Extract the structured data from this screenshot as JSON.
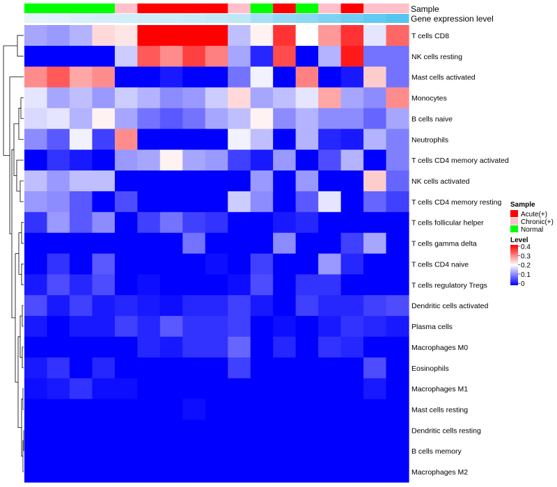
{
  "chart_data": {
    "type": "heatmap",
    "annotation_labels": {
      "sample": "Sample",
      "gene_expression": "Gene expression level"
    },
    "legend_sample": {
      "title": "Sample",
      "entries": [
        {
          "label": "Acute(+)",
          "color": "#ff0000"
        },
        {
          "label": "Chronic(+)",
          "color": "#ffc0cb"
        },
        {
          "label": "Normal",
          "color": "#00ff00"
        }
      ]
    },
    "legend_level": {
      "title": "Level",
      "ticks": [
        "0.4",
        "0.3",
        "0.2",
        "0.1",
        "0"
      ],
      "range": [
        0,
        0.4
      ],
      "colors": [
        "#0000ff",
        "#ffffff",
        "#ff0000"
      ]
    },
    "sample_groups": [
      "Normal",
      "Normal",
      "Normal",
      "Normal",
      "Chronic(+)",
      "Acute(+)",
      "Acute(+)",
      "Acute(+)",
      "Acute(+)",
      "Chronic(+)",
      "Normal",
      "Acute(+)",
      "Normal",
      "Chronic(+)",
      "Acute(+)",
      "Chronic(+)",
      "Chronic(+)"
    ],
    "gene_expression_level": [
      0.02,
      0.04,
      0.1,
      0.12,
      0.14,
      0.16,
      0.18,
      0.2,
      0.24,
      0.28,
      0.42,
      0.55,
      0.6,
      0.7,
      0.78,
      0.88,
      0.96
    ],
    "rows": [
      "T cells CD8",
      "NK cells resting",
      "Mast cells activated",
      "Monocytes",
      "B cells naive",
      "Neutrophils",
      "T cells CD4 memory activated",
      "NK cells activated",
      "T cells CD4 memory resting",
      "T cells follicular helper",
      "T cells gamma delta",
      "T cells CD4 naive",
      "T cells regulatory  Tregs",
      "Dendritic cells activated",
      "Plasma cells",
      "Macrophages M0",
      "Eosinophils",
      "Macrophages M1",
      "Mast cells resting",
      "Dendritic cells resting",
      "B cells memory",
      "Macrophages M2"
    ],
    "values": [
      [
        0.13,
        0.12,
        0.14,
        0.23,
        0.22,
        0.4,
        0.4,
        0.4,
        0.4,
        0.15,
        0.21,
        0.36,
        0.2,
        0.28,
        0.36,
        0.18,
        0.32
      ],
      [
        0.0,
        0.0,
        0.0,
        0.0,
        0.16,
        0.33,
        0.29,
        0.35,
        0.3,
        0.13,
        0.03,
        0.34,
        0.0,
        0.14,
        0.38,
        0.09,
        0.09
      ],
      [
        0.29,
        0.33,
        0.27,
        0.29,
        0.0,
        0.0,
        0.02,
        0.0,
        0.0,
        0.09,
        0.19,
        0.0,
        0.3,
        0.0,
        0.02,
        0.24,
        0.09
      ],
      [
        0.18,
        0.13,
        0.15,
        0.12,
        0.16,
        0.14,
        0.11,
        0.12,
        0.16,
        0.23,
        0.13,
        0.15,
        0.18,
        0.27,
        0.13,
        0.11,
        0.29
      ],
      [
        0.17,
        0.18,
        0.14,
        0.21,
        0.13,
        0.09,
        0.07,
        0.09,
        0.13,
        0.15,
        0.21,
        0.11,
        0.14,
        0.11,
        0.11,
        0.08,
        0.13
      ],
      [
        0.11,
        0.07,
        0.19,
        0.05,
        0.29,
        0.0,
        0.0,
        0.0,
        0.0,
        0.19,
        0.15,
        0.0,
        0.14,
        0.03,
        0.02,
        0.14,
        0.1
      ],
      [
        0.0,
        0.04,
        0.02,
        0.0,
        0.12,
        0.13,
        0.21,
        0.13,
        0.12,
        0.05,
        0.02,
        0.12,
        0.0,
        0.06,
        0.14,
        0.0,
        0.1
      ],
      [
        0.15,
        0.12,
        0.15,
        0.15,
        0.0,
        0.0,
        0.0,
        0.0,
        0.0,
        0.0,
        0.12,
        0.0,
        0.12,
        0.0,
        0.0,
        0.24,
        0.08
      ],
      [
        0.12,
        0.11,
        0.07,
        0.0,
        0.06,
        0.0,
        0.0,
        0.0,
        0.0,
        0.16,
        0.11,
        0.0,
        0.07,
        0.18,
        0.0,
        0.08,
        0.05
      ],
      [
        0.04,
        0.12,
        0.07,
        0.11,
        0.0,
        0.05,
        0.09,
        0.05,
        0.04,
        0.0,
        0.0,
        0.02,
        0.03,
        0.0,
        0.0,
        0.0,
        0.0
      ],
      [
        0.0,
        0.0,
        0.0,
        0.0,
        0.0,
        0.0,
        0.0,
        0.09,
        0.0,
        0.0,
        0.0,
        0.11,
        0.0,
        0.0,
        0.05,
        0.13,
        0.0
      ],
      [
        0.0,
        0.04,
        0.0,
        0.07,
        0.0,
        0.0,
        0.0,
        0.0,
        0.01,
        0.0,
        0.05,
        0.0,
        0.0,
        0.12,
        0.03,
        0.0,
        0.0
      ],
      [
        0.02,
        0.06,
        0.03,
        0.06,
        0.0,
        0.01,
        0.0,
        0.0,
        0.0,
        0.01,
        0.06,
        0.0,
        0.04,
        0.04,
        0.0,
        0.0,
        0.0
      ],
      [
        0.06,
        0.02,
        0.05,
        0.02,
        0.03,
        0.02,
        0.01,
        0.03,
        0.03,
        0.05,
        0.02,
        0.0,
        0.05,
        0.03,
        0.03,
        0.05,
        0.06
      ],
      [
        0.02,
        0.0,
        0.02,
        0.02,
        0.05,
        0.03,
        0.07,
        0.04,
        0.04,
        0.05,
        0.0,
        0.01,
        0.0,
        0.02,
        0.04,
        0.03,
        0.02
      ],
      [
        0.0,
        0.0,
        0.0,
        0.0,
        0.0,
        0.03,
        0.02,
        0.04,
        0.04,
        0.08,
        0.0,
        0.03,
        0.0,
        0.04,
        0.03,
        0.0,
        0.0
      ],
      [
        0.02,
        0.04,
        0.0,
        0.03,
        0.0,
        0.0,
        0.0,
        0.0,
        0.0,
        0.05,
        0.0,
        0.0,
        0.0,
        0.0,
        0.0,
        0.06,
        0.0
      ],
      [
        0.01,
        0.02,
        0.04,
        0.01,
        0.01,
        0.0,
        0.0,
        0.0,
        0.0,
        0.0,
        0.0,
        0.0,
        0.0,
        0.0,
        0.0,
        0.02,
        0.0
      ],
      [
        0.0,
        0.0,
        0.0,
        0.0,
        0.0,
        0.0,
        0.0,
        0.01,
        0.0,
        0.0,
        0.0,
        0.0,
        0.0,
        0.0,
        0.0,
        0.0,
        0.0
      ],
      [
        0.0,
        0.0,
        0.0,
        0.0,
        0.0,
        0.0,
        0.0,
        0.0,
        0.0,
        0.0,
        0.0,
        0.0,
        0.0,
        0.0,
        0.0,
        0.0,
        0.0
      ],
      [
        0.0,
        0.0,
        0.0,
        0.0,
        0.0,
        0.0,
        0.0,
        0.0,
        0.0,
        0.0,
        0.0,
        0.0,
        0.0,
        0.0,
        0.0,
        0.0,
        0.0
      ],
      [
        0.0,
        0.0,
        0.0,
        0.0,
        0.0,
        0.0,
        0.0,
        0.0,
        0.0,
        0.0,
        0.0,
        0.0,
        0.0,
        0.0,
        0.0,
        0.0,
        0.0
      ]
    ],
    "dendrogram": "row clustering tree on the left",
    "grid": false,
    "legend_placement": "right"
  }
}
